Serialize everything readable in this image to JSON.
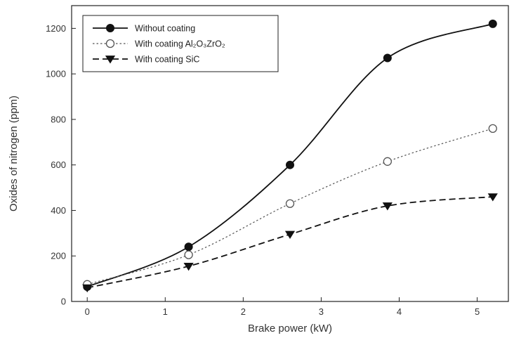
{
  "chart_data": {
    "type": "line",
    "xlabel": "Brake power (kW)",
    "ylabel": "Oxides of nitrogen (ppm)",
    "xlim": [
      -0.2,
      5.4
    ],
    "ylim": [
      0,
      1300
    ],
    "xticks": [
      0,
      1,
      2,
      3,
      4,
      5
    ],
    "yticks": [
      0,
      200,
      400,
      600,
      800,
      1000,
      1200
    ],
    "grid": false,
    "legend_position": "top-left",
    "series": [
      {
        "name": "Without coating",
        "x": [
          0,
          1.3,
          2.6,
          3.85,
          5.2
        ],
        "values": [
          65,
          240,
          600,
          1070,
          1220
        ],
        "color": "#111111",
        "line_style": "solid",
        "marker": "filled-circle"
      },
      {
        "name": "With coating Al2O3ZrO2",
        "name_display": "With coating Al₂O₃ZrO₂",
        "x": [
          0,
          1.3,
          2.6,
          3.85,
          5.2
        ],
        "values": [
          75,
          205,
          430,
          615,
          760
        ],
        "color": "#555555",
        "line_style": "dotted",
        "marker": "open-circle"
      },
      {
        "name": "With coating SiC",
        "x": [
          0,
          1.3,
          2.6,
          3.85,
          5.2
        ],
        "values": [
          60,
          155,
          295,
          420,
          460
        ],
        "color": "#111111",
        "line_style": "dashed",
        "marker": "filled-triangle-down"
      }
    ]
  }
}
